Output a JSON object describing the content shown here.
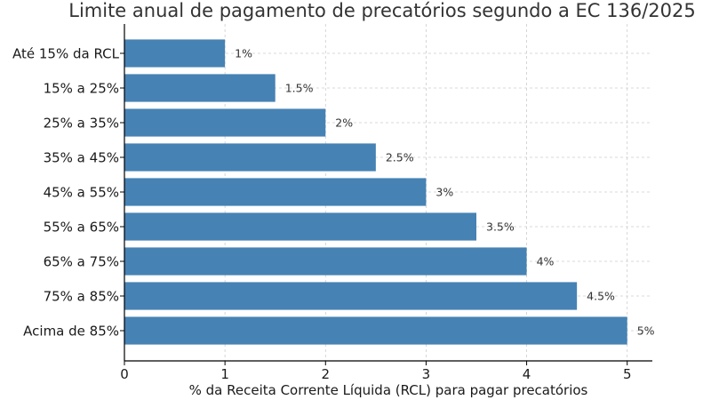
{
  "chart_data": {
    "type": "bar",
    "orientation": "horizontal",
    "title": "Limite anual de pagamento de precatórios segundo a EC 136/2025",
    "xlabel": "% da Receita Corrente Líquida (RCL) para pagar precatórios",
    "ylabel": "",
    "categories": [
      "Até 15% da RCL",
      "15% a 25%",
      "25% a 35%",
      "35% a 45%",
      "45% a 55%",
      "55% a 65%",
      "65% a 75%",
      "75% a 85%",
      "Acima de 85%"
    ],
    "values": [
      1,
      1.5,
      2,
      2.5,
      3,
      3.5,
      4,
      4.5,
      5
    ],
    "data_labels": [
      "1%",
      "1.5%",
      "2%",
      "2.5%",
      "3%",
      "3.5%",
      "4%",
      "4.5%",
      "5%"
    ],
    "xlim": [
      0,
      5.25
    ],
    "xticks": [
      0,
      1,
      2,
      3,
      4,
      5
    ],
    "xtick_labels": [
      "0",
      "1",
      "2",
      "3",
      "4",
      "5"
    ],
    "grid": true,
    "legend": "none",
    "colors": {
      "bar": "#4682b4",
      "grid": "#cccccc",
      "axis": "#000000"
    }
  }
}
